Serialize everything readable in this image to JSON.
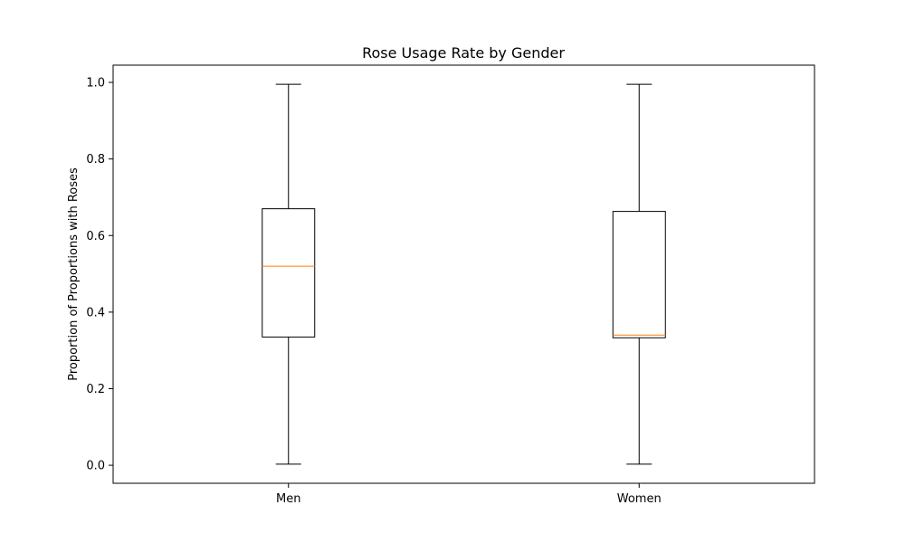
{
  "chart_data": {
    "type": "box",
    "title": "Rose Usage Rate by Gender",
    "xlabel": "",
    "ylabel": "Proportion of Proportions with Roses",
    "categories": [
      "Men",
      "Women"
    ],
    "boxes": [
      {
        "name": "Men",
        "whisker_low": 0.003,
        "q1": 0.335,
        "median": 0.52,
        "q3": 0.67,
        "whisker_high": 0.995
      },
      {
        "name": "Women",
        "whisker_low": 0.003,
        "q1": 0.333,
        "median": 0.34,
        "q3": 0.663,
        "whisker_high": 0.995
      }
    ],
    "ylim": [
      -0.047,
      1.045
    ],
    "yticks": [
      0.0,
      0.2,
      0.4,
      0.6,
      0.8,
      1.0
    ],
    "ytick_labels": [
      "0.0",
      "0.2",
      "0.4",
      "0.6",
      "0.8",
      "1.0"
    ],
    "grid": false,
    "colors": {
      "box": "#000000",
      "median": "#ff7f0e"
    }
  }
}
